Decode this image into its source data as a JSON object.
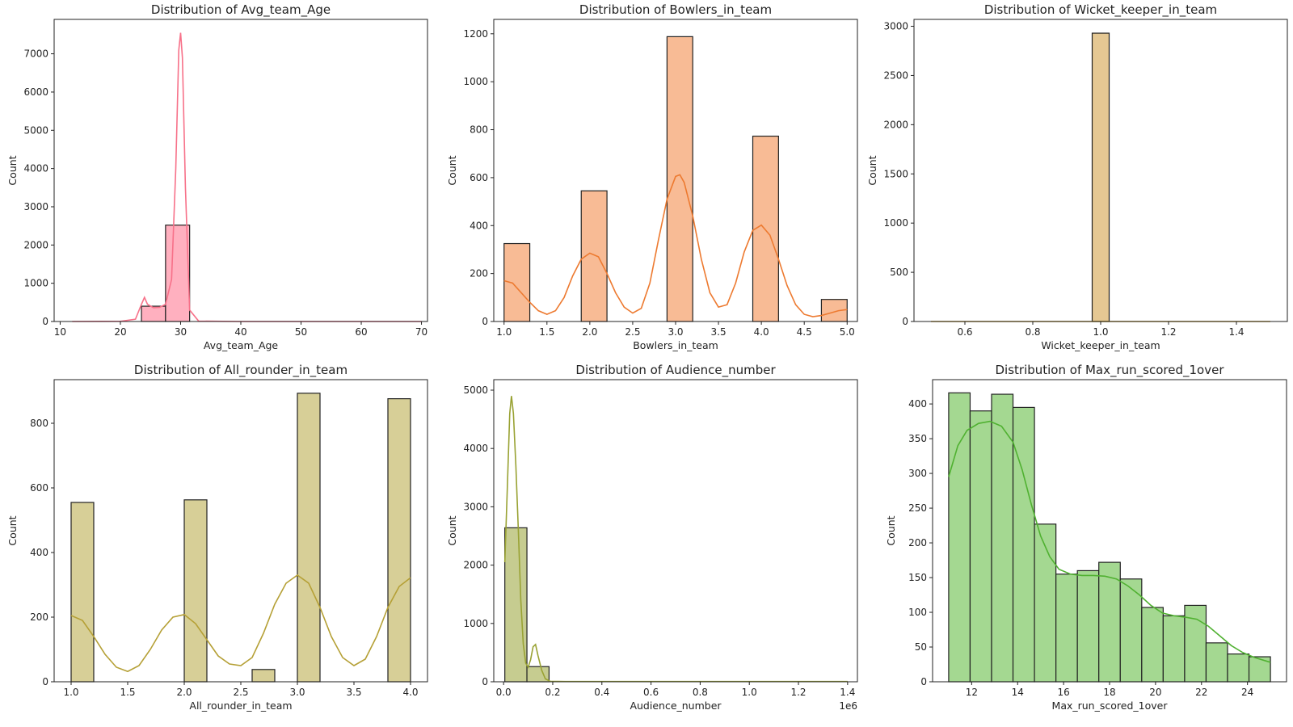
{
  "chart_data": [
    {
      "type": "bar",
      "title": "Distribution of Avg_team_Age",
      "xlabel": "Avg_team_Age",
      "ylabel": "Count",
      "color": "#f77189",
      "fill": "#ffb0bf",
      "xlim": [
        9,
        71
      ],
      "ylim": [
        0,
        7900
      ],
      "xticks": [
        10,
        20,
        30,
        40,
        50,
        60,
        70
      ],
      "yticks": [
        0,
        1000,
        2000,
        3000,
        4000,
        5000,
        6000,
        7000
      ],
      "bins": [
        {
          "x0": 23.5,
          "x1": 27.5,
          "count": 400
        },
        {
          "x0": 27.5,
          "x1": 31.5,
          "count": 2520
        }
      ],
      "kde": [
        [
          12,
          0
        ],
        [
          20,
          5
        ],
        [
          22.5,
          60
        ],
        [
          23.5,
          450
        ],
        [
          24,
          630
        ],
        [
          24.5,
          450
        ],
        [
          25.5,
          360
        ],
        [
          26.5,
          370
        ],
        [
          27.5,
          450
        ],
        [
          28.5,
          1100
        ],
        [
          29.2,
          4000
        ],
        [
          29.7,
          7100
        ],
        [
          30,
          7550
        ],
        [
          30.3,
          6900
        ],
        [
          30.8,
          3500
        ],
        [
          31.5,
          300
        ],
        [
          33,
          10
        ],
        [
          40,
          0
        ],
        [
          70,
          0
        ]
      ]
    },
    {
      "type": "bar",
      "title": "Distribution of Bowlers_in_team",
      "xlabel": "Bowlers_in_team",
      "ylabel": "Count",
      "color": "#ed7a30",
      "fill": "#f8bb95",
      "xlim": [
        0.88,
        5.12
      ],
      "ylim": [
        0,
        1260
      ],
      "xticks": [
        1.0,
        1.5,
        2.0,
        2.5,
        3.0,
        3.5,
        4.0,
        4.5,
        5.0
      ],
      "yticks": [
        0,
        200,
        400,
        600,
        800,
        1000,
        1200
      ],
      "bins": [
        {
          "x0": 1.0,
          "x1": 1.3,
          "count": 325
        },
        {
          "x0": 1.9,
          "x1": 2.2,
          "count": 545
        },
        {
          "x0": 2.9,
          "x1": 3.2,
          "count": 1188
        },
        {
          "x0": 3.9,
          "x1": 4.2,
          "count": 773
        },
        {
          "x0": 4.7,
          "x1": 5.0,
          "count": 92
        }
      ],
      "kde": [
        [
          1.0,
          170
        ],
        [
          1.1,
          160
        ],
        [
          1.2,
          120
        ],
        [
          1.3,
          80
        ],
        [
          1.4,
          45
        ],
        [
          1.5,
          30
        ],
        [
          1.6,
          45
        ],
        [
          1.7,
          100
        ],
        [
          1.8,
          190
        ],
        [
          1.9,
          260
        ],
        [
          2.0,
          285
        ],
        [
          2.1,
          270
        ],
        [
          2.2,
          200
        ],
        [
          2.3,
          120
        ],
        [
          2.4,
          60
        ],
        [
          2.5,
          35
        ],
        [
          2.6,
          55
        ],
        [
          2.7,
          160
        ],
        [
          2.8,
          340
        ],
        [
          2.9,
          510
        ],
        [
          3.0,
          605
        ],
        [
          3.05,
          612
        ],
        [
          3.1,
          580
        ],
        [
          3.2,
          440
        ],
        [
          3.3,
          260
        ],
        [
          3.4,
          120
        ],
        [
          3.5,
          60
        ],
        [
          3.6,
          70
        ],
        [
          3.7,
          160
        ],
        [
          3.8,
          290
        ],
        [
          3.9,
          380
        ],
        [
          4.0,
          402
        ],
        [
          4.1,
          360
        ],
        [
          4.2,
          260
        ],
        [
          4.3,
          150
        ],
        [
          4.4,
          70
        ],
        [
          4.5,
          30
        ],
        [
          4.6,
          20
        ],
        [
          4.7,
          25
        ],
        [
          4.8,
          35
        ],
        [
          4.9,
          45
        ],
        [
          5.0,
          50
        ]
      ]
    },
    {
      "type": "bar",
      "title": "Distribution of Wicket_keeper_in_team",
      "xlabel": "Wicket_keeper_in_team",
      "ylabel": "Count",
      "color": "#c69e36",
      "fill": "#e5c893",
      "xlim": [
        0.45,
        1.55
      ],
      "ylim": [
        0,
        3070
      ],
      "xticks": [
        0.6,
        0.8,
        1.0,
        1.2,
        1.4
      ],
      "yticks": [
        0,
        500,
        1000,
        1500,
        2000,
        2500,
        3000
      ],
      "bins": [
        {
          "x0": 0.975,
          "x1": 1.025,
          "count": 2930
        }
      ],
      "kde": [
        [
          0.5,
          0
        ],
        [
          1.5,
          0
        ]
      ]
    },
    {
      "type": "bar",
      "title": "Distribution of All_rounder_in_team",
      "xlabel": "All_rounder_in_team",
      "ylabel": "Count",
      "color": "#b5a036",
      "fill": "#d7cf97",
      "xlim": [
        0.85,
        4.15
      ],
      "ylim": [
        0,
        935
      ],
      "xticks": [
        1.0,
        1.5,
        2.0,
        2.5,
        3.0,
        3.5,
        4.0
      ],
      "yticks": [
        0,
        200,
        400,
        600,
        800
      ],
      "bins": [
        {
          "x0": 1.0,
          "x1": 1.2,
          "count": 555
        },
        {
          "x0": 2.0,
          "x1": 2.2,
          "count": 563
        },
        {
          "x0": 2.6,
          "x1": 2.8,
          "count": 38
        },
        {
          "x0": 3.0,
          "x1": 3.2,
          "count": 893
        },
        {
          "x0": 3.8,
          "x1": 4.0,
          "count": 876
        }
      ],
      "kde": [
        [
          1.0,
          205
        ],
        [
          1.1,
          190
        ],
        [
          1.2,
          140
        ],
        [
          1.3,
          85
        ],
        [
          1.4,
          45
        ],
        [
          1.5,
          32
        ],
        [
          1.6,
          50
        ],
        [
          1.7,
          100
        ],
        [
          1.8,
          160
        ],
        [
          1.9,
          200
        ],
        [
          2.0,
          208
        ],
        [
          2.1,
          180
        ],
        [
          2.2,
          130
        ],
        [
          2.3,
          80
        ],
        [
          2.4,
          55
        ],
        [
          2.5,
          50
        ],
        [
          2.6,
          75
        ],
        [
          2.7,
          150
        ],
        [
          2.8,
          240
        ],
        [
          2.9,
          305
        ],
        [
          3.0,
          330
        ],
        [
          3.1,
          305
        ],
        [
          3.2,
          230
        ],
        [
          3.3,
          140
        ],
        [
          3.4,
          75
        ],
        [
          3.5,
          50
        ],
        [
          3.6,
          70
        ],
        [
          3.7,
          140
        ],
        [
          3.8,
          230
        ],
        [
          3.9,
          295
        ],
        [
          4.0,
          322
        ]
      ]
    },
    {
      "type": "bar",
      "title": "Distribution of Audience_number",
      "xlabel": "Audience_number",
      "ylabel": "Count",
      "offset_label": "1e6",
      "color": "#99a233",
      "fill": "#c6cc90",
      "xlim": [
        -0.04,
        1.44
      ],
      "ylim": [
        0,
        5180
      ],
      "xticks": [
        0.0,
        0.2,
        0.4,
        0.6,
        0.8,
        1.0,
        1.2,
        1.4
      ],
      "yticks": [
        0,
        1000,
        2000,
        3000,
        4000,
        5000
      ],
      "bins": [
        {
          "x0": 0.005,
          "x1": 0.095,
          "count": 2640
        },
        {
          "x0": 0.095,
          "x1": 0.185,
          "count": 260
        }
      ],
      "kde": [
        [
          0.005,
          2050
        ],
        [
          0.015,
          3300
        ],
        [
          0.025,
          4600
        ],
        [
          0.032,
          4900
        ],
        [
          0.04,
          4600
        ],
        [
          0.05,
          3700
        ],
        [
          0.06,
          2600
        ],
        [
          0.07,
          1400
        ],
        [
          0.08,
          650
        ],
        [
          0.09,
          320
        ],
        [
          0.1,
          250
        ],
        [
          0.11,
          380
        ],
        [
          0.12,
          600
        ],
        [
          0.13,
          640
        ],
        [
          0.14,
          450
        ],
        [
          0.155,
          200
        ],
        [
          0.17,
          50
        ],
        [
          0.19,
          8
        ],
        [
          0.25,
          5
        ],
        [
          1.4,
          5
        ]
      ]
    },
    {
      "type": "bar",
      "title": "Distribution of Max_run_scored_1over",
      "xlabel": "Max_run_scored_1over",
      "ylabel": "Count",
      "color": "#50b131",
      "fill": "#a4d891",
      "xlim": [
        10.3,
        25.7
      ],
      "ylim": [
        0,
        435
      ],
      "xticks": [
        12,
        14,
        16,
        18,
        20,
        22,
        24
      ],
      "yticks": [
        0,
        50,
        100,
        150,
        200,
        250,
        300,
        350,
        400
      ],
      "bins": [
        {
          "x0": 11.0,
          "x1": 11.933,
          "count": 416
        },
        {
          "x0": 11.933,
          "x1": 12.867,
          "count": 390
        },
        {
          "x0": 12.867,
          "x1": 13.8,
          "count": 414
        },
        {
          "x0": 13.8,
          "x1": 14.733,
          "count": 395
        },
        {
          "x0": 14.733,
          "x1": 15.667,
          "count": 227
        },
        {
          "x0": 15.667,
          "x1": 16.6,
          "count": 155
        },
        {
          "x0": 16.6,
          "x1": 17.533,
          "count": 160
        },
        {
          "x0": 17.533,
          "x1": 18.467,
          "count": 172
        },
        {
          "x0": 18.467,
          "x1": 19.4,
          "count": 148
        },
        {
          "x0": 19.4,
          "x1": 20.333,
          "count": 107
        },
        {
          "x0": 20.333,
          "x1": 21.267,
          "count": 95
        },
        {
          "x0": 21.267,
          "x1": 22.2,
          "count": 110
        },
        {
          "x0": 22.2,
          "x1": 23.133,
          "count": 56
        },
        {
          "x0": 23.133,
          "x1": 24.067,
          "count": 40
        },
        {
          "x0": 24.067,
          "x1": 25.0,
          "count": 36
        }
      ],
      "kde": [
        [
          11.0,
          295
        ],
        [
          11.4,
          340
        ],
        [
          11.8,
          362
        ],
        [
          12.3,
          372
        ],
        [
          12.8,
          375
        ],
        [
          13.3,
          368
        ],
        [
          13.8,
          345
        ],
        [
          14.2,
          305
        ],
        [
          14.6,
          255
        ],
        [
          15.0,
          210
        ],
        [
          15.4,
          180
        ],
        [
          15.8,
          162
        ],
        [
          16.3,
          155
        ],
        [
          16.8,
          153
        ],
        [
          17.3,
          153
        ],
        [
          17.8,
          152
        ],
        [
          18.3,
          148
        ],
        [
          18.8,
          138
        ],
        [
          19.3,
          125
        ],
        [
          19.8,
          110
        ],
        [
          20.3,
          99
        ],
        [
          20.8,
          95
        ],
        [
          21.3,
          93
        ],
        [
          21.8,
          90
        ],
        [
          22.3,
          80
        ],
        [
          22.8,
          66
        ],
        [
          23.3,
          52
        ],
        [
          23.8,
          42
        ],
        [
          24.3,
          35
        ],
        [
          25.0,
          28
        ]
      ]
    }
  ]
}
